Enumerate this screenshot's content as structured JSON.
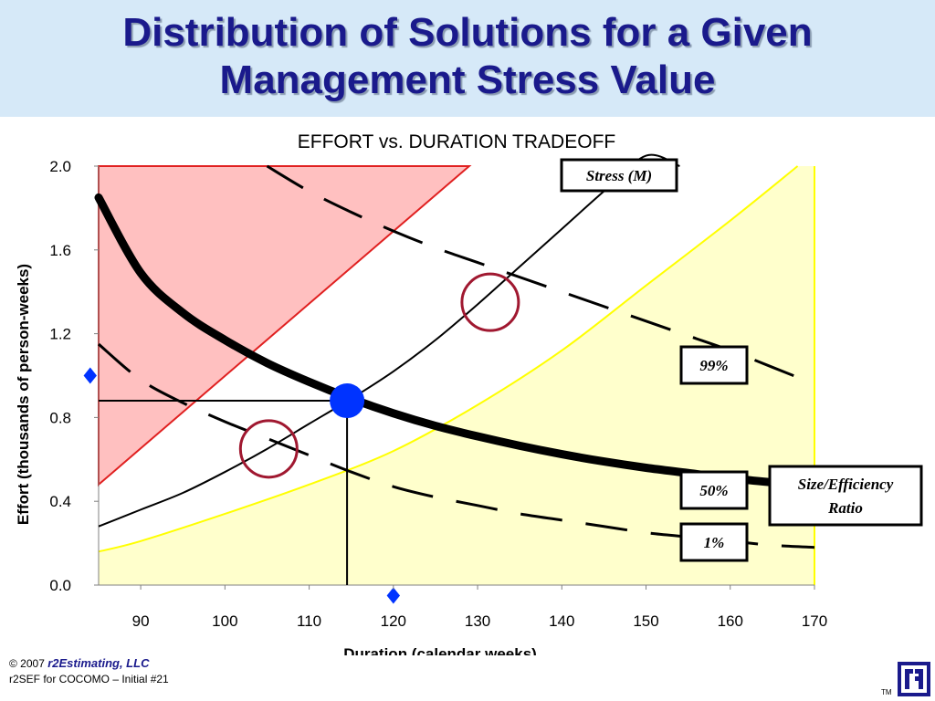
{
  "slide": {
    "title_line1": "Distribution of Solutions for a Given",
    "title_line2": "Management Stress Value"
  },
  "footer": {
    "copyright": "© 2007",
    "brand": "r2Estimating, LLC",
    "subtitle": "r2SEF for COCOMO – Initial #21",
    "tm": "TM"
  },
  "colors": {
    "accent": "#1a1a8c",
    "header_bg": "#d6e9f8",
    "red_region": "#ffc0c0",
    "red_border": "#e02020",
    "yellow_region": "#ffffcc",
    "yellow_border": "#ffff00",
    "marker": "#0033ff",
    "circle": "#a01830"
  },
  "chart_data": {
    "type": "line",
    "title": "EFFORT vs. DURATION TRADEOFF",
    "xlabel": "Duration (calendar weeks)",
    "ylabel": "Effort (thousands of person-weeks)",
    "xlim": [
      85,
      170
    ],
    "ylim": [
      0,
      2
    ],
    "xticks": [
      90,
      100,
      110,
      120,
      130,
      140,
      150,
      160,
      170
    ],
    "yticks": [
      "0.0",
      "0.4",
      "0.8",
      "1.2",
      "1.6",
      "2.0"
    ],
    "yticks_values": [
      0,
      0.4,
      0.8,
      1.2,
      1.6,
      2.0
    ],
    "grid": false,
    "series": [
      {
        "key": "size_efficiency",
        "style": "thick",
        "x": [
          85,
          90,
          95,
          100,
          105,
          110,
          115,
          120,
          125,
          130,
          135,
          140,
          145,
          150,
          155,
          160,
          165
        ],
        "y": [
          1.85,
          1.49,
          1.3,
          1.17,
          1.06,
          0.97,
          0.89,
          0.82,
          0.76,
          0.71,
          0.665,
          0.625,
          0.59,
          0.56,
          0.535,
          0.51,
          0.49
        ]
      },
      {
        "key": "stress",
        "x": [
          85,
          90,
          95,
          100,
          105,
          110,
          115,
          120,
          125,
          130,
          135,
          140,
          145,
          150,
          154
        ],
        "y": [
          0.28,
          0.36,
          0.44,
          0.54,
          0.65,
          0.77,
          0.89,
          1.02,
          1.17,
          1.34,
          1.52,
          1.7,
          1.88,
          2.05,
          2.0
        ]
      },
      {
        "key": "p99",
        "style": "dashed",
        "x": [
          105,
          110,
          115,
          120,
          125,
          130,
          135,
          140,
          145,
          150,
          155,
          160,
          165,
          170
        ],
        "y": [
          2.0,
          1.88,
          1.78,
          1.69,
          1.61,
          1.54,
          1.47,
          1.4,
          1.33,
          1.26,
          1.19,
          1.12,
          1.04,
          0.96
        ]
      },
      {
        "key": "p1",
        "style": "dashed",
        "x": [
          85,
          90,
          95,
          100,
          105,
          110,
          115,
          120,
          125,
          130,
          135,
          140,
          145,
          150,
          155,
          160,
          165,
          170
        ],
        "y": [
          1.15,
          0.98,
          0.87,
          0.78,
          0.7,
          0.62,
          0.54,
          0.47,
          0.42,
          0.38,
          0.34,
          0.31,
          0.28,
          0.25,
          0.23,
          0.21,
          0.19,
          0.18
        ]
      },
      {
        "key": "yellow_boundary",
        "x": [
          85,
          90,
          100,
          110,
          120,
          130,
          140,
          150,
          160,
          168
        ],
        "y": [
          0.16,
          0.21,
          0.34,
          0.48,
          0.64,
          0.86,
          1.12,
          1.43,
          1.74,
          2.0
        ]
      }
    ],
    "red_region": {
      "x": [
        85,
        85,
        129
      ],
      "y": [
        0.48,
        2.0,
        2.0
      ]
    },
    "operating_point": {
      "x": 114.5,
      "y": 0.88
    },
    "circles": [
      {
        "x": 131.5,
        "y": 1.35
      },
      {
        "x": 105.2,
        "y": 0.65
      }
    ],
    "diamonds": [
      {
        "x": 84,
        "y": 1.0
      },
      {
        "x": 120,
        "y": -0.05
      }
    ],
    "labels": [
      {
        "text": "Stress (M)",
        "x": 149.5,
        "y": 1.95
      },
      {
        "text": "99%",
        "x": 159.5,
        "y": 1.04
      },
      {
        "text": "50%",
        "x": 159.5,
        "y": 0.46
      },
      {
        "text": "1%",
        "x": 159.5,
        "y": 0.19
      },
      {
        "text": "Size/Efficiency Ratio",
        "x": 182.5,
        "y": 0.42
      }
    ]
  }
}
